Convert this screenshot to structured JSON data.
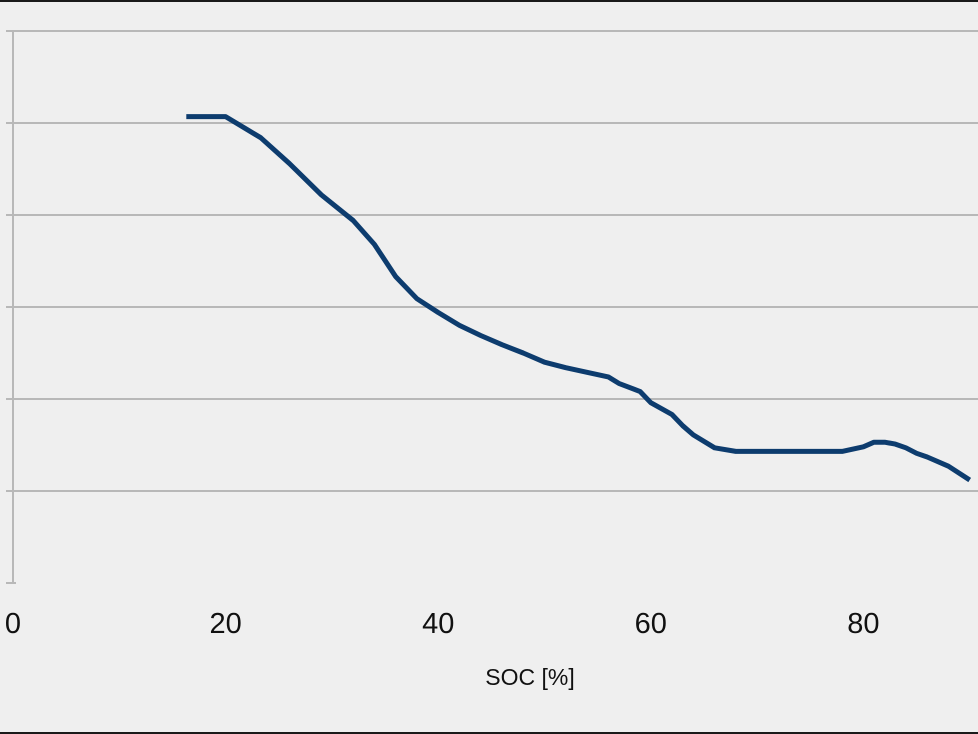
{
  "chart_data": {
    "type": "line",
    "title": "",
    "xlabel": "SOC [%]",
    "ylabel": "",
    "xlim": [
      0,
      90
    ],
    "x_ticks": [
      0,
      20,
      40,
      60,
      80
    ],
    "x_tick_labels": [
      "0",
      "20",
      "40",
      "60",
      "80"
    ],
    "ylim": [
      0,
      6
    ],
    "y_gridlines": [
      1,
      2,
      3,
      4,
      5,
      6
    ],
    "y_tick_labels_visible": false,
    "grid": true,
    "legend": "none",
    "series": [
      {
        "color": "#0d3c6e",
        "x": [
          16.3,
          20.0,
          23.3,
          26.0,
          29.0,
          32.0,
          34.0,
          36.0,
          38.0,
          40.0,
          42.0,
          44.0,
          46.0,
          48.0,
          50.0,
          52.0,
          54.0,
          56.0,
          57.0,
          59.0,
          60.0,
          62.0,
          63.0,
          64.0,
          66.0,
          68.0,
          70.0,
          74.0,
          78.0,
          80.0,
          81.0,
          82.0,
          83.0,
          84.0,
          85.0,
          86.0,
          88.0,
          90.0
        ],
        "y": [
          5.07,
          5.07,
          4.84,
          4.56,
          4.22,
          3.94,
          3.68,
          3.33,
          3.09,
          2.94,
          2.8,
          2.69,
          2.59,
          2.5,
          2.4,
          2.34,
          2.29,
          2.24,
          2.17,
          2.08,
          1.96,
          1.83,
          1.71,
          1.61,
          1.47,
          1.43,
          1.43,
          1.43,
          1.43,
          1.48,
          1.53,
          1.53,
          1.51,
          1.47,
          1.41,
          1.37,
          1.27,
          1.12
        ]
      }
    ]
  }
}
